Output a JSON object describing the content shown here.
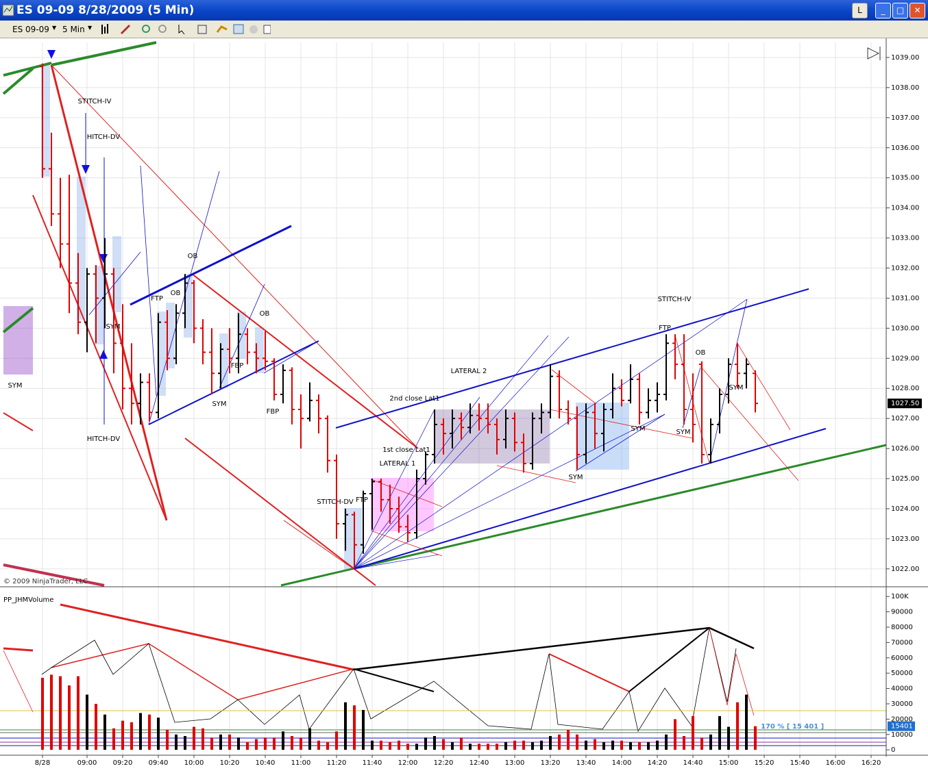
{
  "window": {
    "title": "ES 09-09  8/28/2009 (5 Min)",
    "symbol": "ES 09-09",
    "interval": "5 Min",
    "button": "L"
  },
  "chart_data": [
    {
      "type": "ohlc",
      "ylim": [
        1021.45,
        1039.5
      ],
      "yticks": [
        {
          "value": 1022,
          "label": "1022.00"
        },
        {
          "value": 1023,
          "label": "1023.00"
        },
        {
          "value": 1024,
          "label": "1024.00"
        },
        {
          "value": 1025,
          "label": "1025.00"
        },
        {
          "value": 1026,
          "label": "1026.00"
        },
        {
          "value": 1027,
          "label": "1027.00"
        },
        {
          "value": 1028,
          "label": "1028.00"
        },
        {
          "value": 1029,
          "label": "1029.00"
        },
        {
          "value": 1030,
          "label": "1030.00"
        },
        {
          "value": 1031,
          "label": "1031.00"
        },
        {
          "value": 1032,
          "label": "1032.00"
        },
        {
          "value": 1033,
          "label": "1033.00"
        },
        {
          "value": 1034,
          "label": "1034.00"
        },
        {
          "value": 1035,
          "label": "1035.00"
        },
        {
          "value": 1036,
          "label": "1036.00"
        },
        {
          "value": 1037,
          "label": "1037.00"
        },
        {
          "value": 1038,
          "label": "1038.00"
        },
        {
          "value": 1039,
          "label": "1039.00"
        }
      ],
      "bars": [
        [
          1038.7,
          1038.8,
          1035.0,
          1035.3
        ],
        [
          1035.3,
          1036.5,
          1033.4,
          1033.8
        ],
        [
          1033.8,
          1035.0,
          1032.0,
          1032.8
        ],
        [
          1032.8,
          1035.1,
          1030.5,
          1031.5
        ],
        [
          1031.5,
          1032.5,
          1029.8,
          1030.2
        ],
        [
          1030.2,
          1032.0,
          1029.2,
          1031.8
        ],
        [
          1031.8,
          1032.1,
          1029.5,
          1031.0
        ],
        [
          1031.0,
          1033.0,
          1030.0,
          1031.8
        ],
        [
          1031.8,
          1032.0,
          1028.5,
          1029.5
        ],
        [
          1029.5,
          1030.8,
          1027.3,
          1028.0
        ],
        [
          1028.0,
          1029.5,
          1026.8,
          1027.5
        ],
        [
          1027.5,
          1028.5,
          1026.8,
          1028.2
        ],
        [
          1028.2,
          1028.5,
          1026.9,
          1027.2
        ],
        [
          1027.2,
          1030.5,
          1027.0,
          1030.2
        ],
        [
          1030.2,
          1030.6,
          1028.6,
          1029.0
        ],
        [
          1029.0,
          1030.8,
          1028.8,
          1030.5
        ],
        [
          1030.5,
          1031.8,
          1030.0,
          1031.5
        ],
        [
          1031.5,
          1031.6,
          1029.5,
          1030.0
        ],
        [
          1030.0,
          1030.3,
          1028.8,
          1029.2
        ],
        [
          1029.2,
          1030.0,
          1027.8,
          1028.5
        ],
        [
          1028.5,
          1029.5,
          1028.0,
          1029.3
        ],
        [
          1029.3,
          1030.0,
          1028.5,
          1029.0
        ],
        [
          1029.0,
          1030.5,
          1028.5,
          1029.8
        ],
        [
          1029.8,
          1030.0,
          1028.8,
          1029.2
        ],
        [
          1029.2,
          1029.5,
          1028.5,
          1029.0
        ],
        [
          1029.0,
          1029.9,
          1028.6,
          1028.9
        ],
        [
          1028.9,
          1029.0,
          1027.6,
          1027.8
        ],
        [
          1027.8,
          1028.8,
          1027.5,
          1028.6
        ],
        [
          1028.6,
          1028.7,
          1026.8,
          1027.3
        ],
        [
          1027.3,
          1027.8,
          1026.0,
          1027.0
        ],
        [
          1027.0,
          1028.2,
          1026.9,
          1027.6
        ],
        [
          1027.6,
          1027.8,
          1026.5,
          1027.0
        ],
        [
          1027.0,
          1027.1,
          1025.2,
          1025.6
        ],
        [
          1025.6,
          1025.8,
          1023.0,
          1023.5
        ],
        [
          1023.5,
          1024.0,
          1022.6,
          1023.8
        ],
        [
          1023.8,
          1023.9,
          1022.0,
          1022.8
        ],
        [
          1022.8,
          1024.6,
          1022.5,
          1024.5
        ],
        [
          1024.5,
          1025.0,
          1023.3,
          1024.9
        ],
        [
          1024.9,
          1025.0,
          1023.9,
          1024.3
        ],
        [
          1024.3,
          1024.8,
          1023.5,
          1024.0
        ],
        [
          1024.0,
          1024.4,
          1023.2,
          1023.4
        ],
        [
          1023.4,
          1023.8,
          1022.9,
          1023.2
        ],
        [
          1023.2,
          1025.3,
          1023.0,
          1025.0
        ],
        [
          1025.0,
          1025.9,
          1024.8,
          1025.8
        ],
        [
          1025.8,
          1027.3,
          1025.5,
          1026.8
        ],
        [
          1026.8,
          1027.0,
          1025.8,
          1026.5
        ],
        [
          1026.5,
          1027.3,
          1026.0,
          1027.0
        ],
        [
          1027.0,
          1027.2,
          1026.3,
          1026.7
        ],
        [
          1026.7,
          1027.5,
          1026.5,
          1027.1
        ],
        [
          1027.1,
          1027.5,
          1026.6,
          1027.0
        ],
        [
          1027.0,
          1027.5,
          1026.5,
          1026.8
        ],
        [
          1026.8,
          1027.0,
          1025.8,
          1026.3
        ],
        [
          1026.3,
          1027.3,
          1026.0,
          1027.0
        ],
        [
          1027.0,
          1027.2,
          1025.9,
          1026.2
        ],
        [
          1026.2,
          1026.5,
          1025.2,
          1025.5
        ],
        [
          1025.5,
          1027.2,
          1025.3,
          1027.0
        ],
        [
          1027.0,
          1027.5,
          1026.5,
          1027.2
        ],
        [
          1027.2,
          1028.8,
          1027.0,
          1028.4
        ],
        [
          1028.4,
          1028.6,
          1027.0,
          1027.3
        ],
        [
          1027.3,
          1027.6,
          1026.8,
          1027.0
        ],
        [
          1027.0,
          1027.4,
          1025.3,
          1025.8
        ],
        [
          1025.8,
          1027.5,
          1025.5,
          1027.2
        ],
        [
          1027.2,
          1027.5,
          1026.0,
          1026.5
        ],
        [
          1026.5,
          1027.5,
          1025.9,
          1027.3
        ],
        [
          1027.3,
          1028.5,
          1027.0,
          1028.0
        ],
        [
          1028.0,
          1028.3,
          1027.4,
          1027.6
        ],
        [
          1027.6,
          1028.8,
          1027.5,
          1028.3
        ],
        [
          1028.3,
          1028.5,
          1026.8,
          1027.2
        ],
        [
          1027.2,
          1028.0,
          1027.0,
          1027.6
        ],
        [
          1027.6,
          1028.2,
          1027.2,
          1027.8
        ],
        [
          1027.8,
          1029.8,
          1027.6,
          1029.5
        ],
        [
          1029.5,
          1029.8,
          1028.3,
          1028.8
        ],
        [
          1028.8,
          1029.8,
          1026.8,
          1027.3
        ],
        [
          1027.3,
          1028.5,
          1026.2,
          1026.8
        ],
        [
          1028.8,
          1028.9,
          1025.5,
          1025.8
        ],
        [
          1025.8,
          1027.0,
          1025.5,
          1026.8
        ],
        [
          1026.8,
          1028.0,
          1026.5,
          1027.8
        ],
        [
          1027.8,
          1029.0,
          1027.5,
          1028.8
        ],
        [
          1028.8,
          1029.5,
          1028.0,
          1028.5
        ],
        [
          1028.5,
          1029.0,
          1028.0,
          1028.8
        ],
        [
          1028.5,
          1028.6,
          1027.2,
          1027.5
        ],
        null,
        null,
        null,
        null,
        null,
        null,
        null,
        null,
        null,
        null,
        null,
        null,
        null
      ],
      "last_price": {
        "value": 1027.5,
        "label": "1027.50"
      },
      "annotations": [
        "STITCH-IV",
        "HITCH-DV",
        "HITCH-DV",
        "SYM",
        "OB",
        "OB",
        "FTP",
        "OB",
        "FBP",
        "SYM",
        "FBP",
        "SYM",
        "LATERAL 2",
        "2nd close Lat1",
        "1st close Lat1",
        "LATERAL 1",
        "STITCH-DV",
        "FTP",
        "STITCH-IV",
        "FTP",
        "OB",
        "SYM",
        "SYM",
        "SYM",
        "SYM"
      ],
      "copyright": "© 2009 NinjaTrader, LLC",
      "up_color": "#000000",
      "down_color": "#e00000",
      "grid": true
    },
    {
      "type": "bar",
      "title": "PP_JHMVolume",
      "categories": [
        "8/28",
        null,
        null,
        null,
        null,
        "09:00",
        null,
        null,
        null,
        "09:20",
        null,
        null,
        null,
        "09:40",
        null,
        null,
        null,
        "10:00",
        null,
        null,
        null,
        "10:20",
        null,
        null,
        null,
        "10:40",
        null,
        null,
        null,
        "11:00",
        null,
        null,
        null,
        "11:20",
        null,
        null,
        null,
        "11:40",
        null,
        null,
        null,
        "12:00",
        null,
        null,
        null,
        "12:20",
        null,
        null,
        null,
        "12:40",
        null,
        null,
        null,
        "13:00",
        null,
        null,
        null,
        "13:20",
        null,
        null,
        null,
        "13:40",
        null,
        null,
        null,
        "14:00",
        null,
        null,
        null,
        "14:20",
        null,
        null,
        null,
        "14:40",
        null,
        null,
        null,
        "15:00",
        null,
        null,
        null,
        "15:20",
        null,
        null,
        null,
        "15:40",
        null,
        null,
        null,
        "16:00",
        null,
        null,
        null,
        "16:20"
      ],
      "values": [
        47000,
        49000,
        48000,
        42000,
        48000,
        36000,
        30000,
        23000,
        14000,
        19000,
        18000,
        24000,
        23000,
        21000,
        13000,
        10000,
        9000,
        15000,
        14000,
        8000,
        10000,
        10000,
        8000,
        5000,
        7000,
        8000,
        8000,
        12000,
        9000,
        8000,
        14000,
        6000,
        5000,
        12000,
        31000,
        29000,
        26000,
        6000,
        6000,
        5000,
        6000,
        4000,
        4000,
        8000,
        9000,
        7000,
        5000,
        8000,
        4000,
        4000,
        4000,
        4000,
        5000,
        6000,
        6000,
        5000,
        6000,
        9000,
        10000,
        13000,
        10000,
        6000,
        7000,
        5000,
        6000,
        6000,
        5000,
        5000,
        5000,
        6000,
        10000,
        20000,
        9000,
        22000,
        8000,
        10000,
        22000,
        15000,
        31000,
        36000,
        15401,
        null,
        null,
        null,
        null,
        null,
        null,
        null,
        null,
        null,
        null,
        null,
        null,
        null
      ],
      "ylim": [
        -3500,
        105000
      ],
      "yticks": [
        0,
        10000,
        20000,
        30000,
        40000,
        50000,
        60000,
        70000,
        80000,
        90000,
        {
          "value": 100000,
          "label": "100K"
        }
      ],
      "note": "170 % [ 15 401 ]"
    }
  ]
}
